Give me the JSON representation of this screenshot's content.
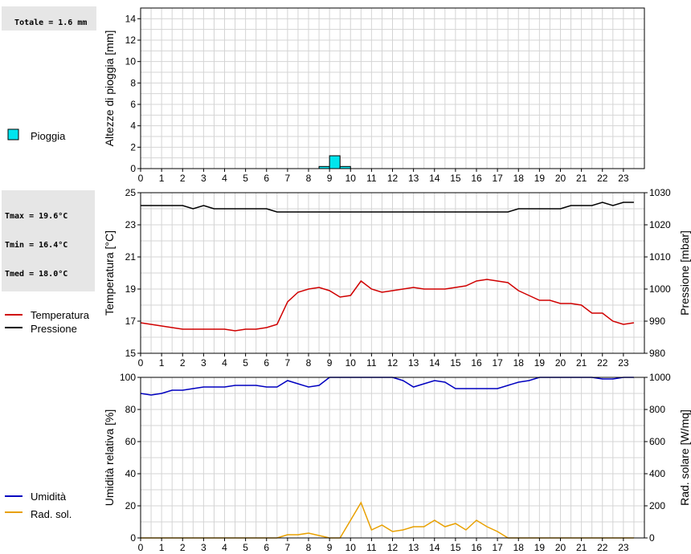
{
  "stats": {
    "total_rain": "Totale = 1.6 mm",
    "tmax": "Tmax = 19.6°C",
    "tmin": "Tmin = 16.4°C",
    "tmed": "Tmed = 18.0°C"
  },
  "legend": {
    "rain": "Pioggia",
    "temp": "Temperatura",
    "pressure": "Pressione",
    "humidity": "Umidità",
    "radiation": "Rad. sol."
  },
  "colors": {
    "rain_fill": "#00e5ee",
    "temp": "#d00000",
    "pressure": "#000000",
    "humidity": "#0000c0",
    "radiation": "#e8a000",
    "grid": "#d4d4d4"
  },
  "chart_data": [
    {
      "type": "bar",
      "ylabel": "Altezze di pioggia [mm]",
      "ylim": [
        0,
        15
      ],
      "yticks": [
        0,
        2,
        4,
        6,
        8,
        10,
        12,
        14
      ],
      "xlim": [
        0,
        24
      ],
      "xticks": [
        "0",
        "1",
        "2",
        "3",
        "4",
        "5",
        "6",
        "7",
        "8",
        "9",
        "10",
        "11",
        "12",
        "13",
        "14",
        "15",
        "16",
        "17",
        "18",
        "19",
        "20",
        "21",
        "22",
        "23"
      ],
      "series": [
        {
          "name": "Pioggia",
          "bars": [
            [
              8.5,
              0.2
            ],
            [
              9.0,
              1.2
            ],
            [
              9.5,
              0.2
            ]
          ]
        }
      ],
      "grid": true
    },
    {
      "type": "line",
      "ylabel": "Temperatura [°C]",
      "ylabel_right": "Pressione [mbar]",
      "ylim": [
        15,
        25
      ],
      "yticks": [
        15,
        17,
        19,
        21,
        23,
        25
      ],
      "ylim_right": [
        980,
        1030
      ],
      "yticks_right": [
        980,
        990,
        1000,
        1010,
        1020,
        1030
      ],
      "xlim": [
        0,
        24
      ],
      "xticks": [
        "0",
        "1",
        "2",
        "3",
        "4",
        "5",
        "6",
        "7",
        "8",
        "9",
        "10",
        "11",
        "12",
        "13",
        "14",
        "15",
        "16",
        "17",
        "18",
        "19",
        "20",
        "21",
        "22",
        "23"
      ],
      "grid": true,
      "series": [
        {
          "name": "Temperatura",
          "axis": "left",
          "x": [
            0,
            0.5,
            1,
            1.5,
            2,
            2.5,
            3,
            3.5,
            4,
            4.5,
            5,
            5.5,
            6,
            6.5,
            7,
            7.5,
            8,
            8.5,
            9,
            9.5,
            10,
            10.5,
            11,
            11.5,
            12,
            12.5,
            13,
            13.5,
            14,
            14.5,
            15,
            15.5,
            16,
            16.5,
            17,
            17.5,
            18,
            18.5,
            19,
            19.5,
            20,
            20.5,
            21,
            21.5,
            22,
            22.5,
            23,
            23.5
          ],
          "y": [
            16.9,
            16.8,
            16.7,
            16.6,
            16.5,
            16.5,
            16.5,
            16.5,
            16.5,
            16.4,
            16.5,
            16.5,
            16.6,
            16.8,
            18.2,
            18.8,
            19.0,
            19.1,
            18.9,
            18.5,
            18.6,
            19.5,
            19.0,
            18.8,
            18.9,
            19.0,
            19.1,
            19.0,
            19.0,
            19.0,
            19.1,
            19.2,
            19.5,
            19.6,
            19.5,
            19.4,
            18.9,
            18.6,
            18.3,
            18.3,
            18.1,
            18.1,
            18.0,
            17.5,
            17.5,
            17.0,
            16.8,
            16.9
          ]
        },
        {
          "name": "Pressione",
          "axis": "right",
          "x": [
            0,
            0.5,
            1,
            1.5,
            2,
            2.5,
            3,
            3.5,
            4,
            4.5,
            5,
            5.5,
            6,
            6.5,
            7,
            7.5,
            8,
            8.5,
            9,
            9.5,
            10,
            10.5,
            11,
            11.5,
            12,
            12.5,
            13,
            13.5,
            14,
            14.5,
            15,
            15.5,
            16,
            16.5,
            17,
            17.5,
            18,
            18.5,
            19,
            19.5,
            20,
            20.5,
            21,
            21.5,
            22,
            22.5,
            23,
            23.5
          ],
          "y": [
            1026,
            1026,
            1026,
            1026,
            1026,
            1025,
            1026,
            1025,
            1025,
            1025,
            1025,
            1025,
            1025,
            1024,
            1024,
            1024,
            1024,
            1024,
            1024,
            1024,
            1024,
            1024,
            1024,
            1024,
            1024,
            1024,
            1024,
            1024,
            1024,
            1024,
            1024,
            1024,
            1024,
            1024,
            1024,
            1024,
            1025,
            1025,
            1025,
            1025,
            1025,
            1026,
            1026,
            1026,
            1027,
            1026,
            1027,
            1027
          ]
        }
      ]
    },
    {
      "type": "line",
      "ylabel": "Umidità relativa [%]",
      "ylabel_right": "Rad. solare [W/mq]",
      "ylim": [
        0,
        100
      ],
      "yticks": [
        0,
        20,
        40,
        60,
        80,
        100
      ],
      "ylim_right": [
        0,
        1000
      ],
      "yticks_right": [
        0,
        200,
        400,
        600,
        800,
        1000
      ],
      "xlim": [
        0,
        24
      ],
      "xticks": [
        "0",
        "1",
        "2",
        "3",
        "4",
        "5",
        "6",
        "7",
        "8",
        "9",
        "10",
        "11",
        "12",
        "13",
        "14",
        "15",
        "16",
        "17",
        "18",
        "19",
        "20",
        "21",
        "22",
        "23"
      ],
      "grid": true,
      "series": [
        {
          "name": "Umidità",
          "axis": "left",
          "x": [
            0,
            0.5,
            1,
            1.5,
            2,
            2.5,
            3,
            3.5,
            4,
            4.5,
            5,
            5.5,
            6,
            6.5,
            7,
            7.5,
            8,
            8.5,
            9,
            9.5,
            10,
            10.5,
            11,
            11.5,
            12,
            12.5,
            13,
            13.5,
            14,
            14.5,
            15,
            15.5,
            16,
            16.5,
            17,
            17.5,
            18,
            18.5,
            19,
            19.5,
            20,
            20.5,
            21,
            21.5,
            22,
            22.5,
            23,
            23.5
          ],
          "y": [
            90,
            89,
            90,
            92,
            92,
            93,
            94,
            94,
            94,
            95,
            95,
            95,
            94,
            94,
            98,
            96,
            94,
            95,
            100,
            100,
            100,
            100,
            100,
            100,
            100,
            98,
            94,
            96,
            98,
            97,
            93,
            93,
            93,
            93,
            93,
            95,
            97,
            98,
            100,
            100,
            100,
            100,
            100,
            100,
            99,
            99,
            100,
            100
          ]
        },
        {
          "name": "Rad. sol.",
          "axis": "right",
          "x": [
            0,
            0.5,
            1,
            1.5,
            2,
            2.5,
            3,
            3.5,
            4,
            4.5,
            5,
            5.5,
            6,
            6.5,
            7,
            7.5,
            8,
            8.5,
            9,
            9.5,
            10,
            10.5,
            11,
            11.5,
            12,
            12.5,
            13,
            13.5,
            14,
            14.5,
            15,
            15.5,
            16,
            16.5,
            17,
            17.5,
            18,
            18.5,
            19,
            19.5,
            20,
            20.5,
            21,
            21.5,
            22,
            22.5,
            23,
            23.5
          ],
          "y": [
            0,
            0,
            0,
            0,
            0,
            0,
            0,
            0,
            0,
            0,
            0,
            0,
            0,
            0,
            20,
            20,
            30,
            15,
            0,
            0,
            110,
            220,
            50,
            80,
            40,
            50,
            70,
            70,
            110,
            70,
            90,
            50,
            110,
            70,
            40,
            0,
            0,
            0,
            0,
            0,
            0,
            0,
            0,
            0,
            0,
            0,
            0,
            0
          ]
        }
      ]
    }
  ]
}
